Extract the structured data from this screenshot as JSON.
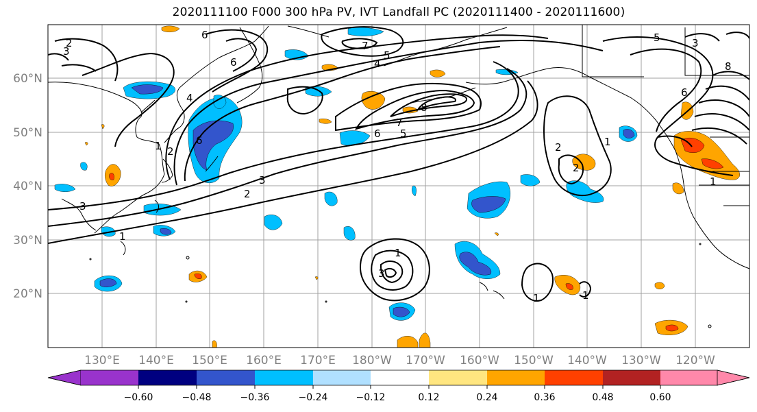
{
  "title": "2020111100 F000 300 hPa PV, IVT Landfall PC (2020111400 - 2020111600)",
  "axes": {
    "lat_labels": [
      "60°N",
      "50°N",
      "40°N",
      "30°N",
      "20°N"
    ],
    "lon_labels": [
      "130°E",
      "140°E",
      "150°E",
      "160°E",
      "170°E",
      "180°W",
      "170°W",
      "160°W",
      "150°W",
      "140°W",
      "130°W",
      "120°W"
    ]
  },
  "colorbar": {
    "colors": [
      "#9933cc",
      "#000080",
      "#3355cc",
      "#00bfff",
      "#b0e0ff",
      "#ffffff",
      "#ffe680",
      "#ffa500",
      "#ff4000",
      "#b22222",
      "#ff88aa"
    ],
    "ticks": [
      "−0.60",
      "−0.48",
      "−0.36",
      "−0.24",
      "−0.12",
      "0.12",
      "0.24",
      "0.36",
      "0.48",
      "0.60"
    ]
  },
  "contour_labels": [
    "2",
    "3",
    "6",
    "6",
    "7",
    "4",
    "5",
    "8",
    "6",
    "5",
    "7",
    "1",
    "2",
    "3",
    "6",
    "1",
    "2",
    "2",
    "1",
    "5",
    "3",
    "6",
    "8",
    "2",
    "3",
    "1",
    "1",
    "1",
    "3",
    "4",
    "1"
  ]
}
